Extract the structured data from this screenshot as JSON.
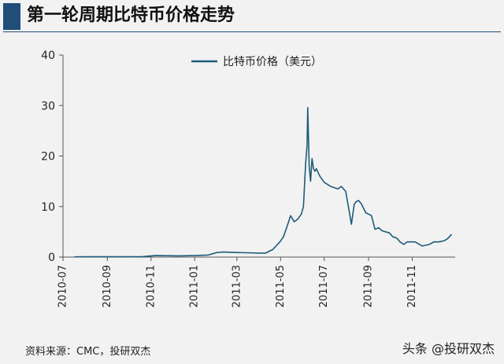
{
  "header": {
    "title": "第一轮周期比特币价格走势",
    "accent_color": "#1f4e79"
  },
  "chart_data": {
    "type": "line",
    "title": "第一轮周期比特币价格走势",
    "xlabel": "",
    "ylabel": "",
    "xlim": [
      "2010-07-01",
      "2011-12-31"
    ],
    "ylim": [
      0,
      40
    ],
    "yticks": [
      "0",
      "10",
      "20",
      "30",
      "40"
    ],
    "xticks": [
      "2010-07",
      "2010-09",
      "2010-11",
      "2011-01",
      "2011-03",
      "2011-05",
      "2011-07",
      "2011-09",
      "2011-11"
    ],
    "grid": false,
    "legend": {
      "position": "top-center"
    },
    "series": [
      {
        "name": "比特币价格（美元）",
        "color": "#1f5c7a",
        "x": [
          "2010-07-17",
          "2010-08-01",
          "2010-08-20",
          "2010-09-10",
          "2010-10-01",
          "2010-10-20",
          "2010-11-07",
          "2010-11-20",
          "2010-12-10",
          "2011-01-01",
          "2011-01-20",
          "2011-02-01",
          "2011-02-10",
          "2011-03-01",
          "2011-03-15",
          "2011-04-01",
          "2011-04-10",
          "2011-04-20",
          "2011-04-30",
          "2011-05-05",
          "2011-05-10",
          "2011-05-15",
          "2011-05-20",
          "2011-05-25",
          "2011-05-30",
          "2011-06-02",
          "2011-06-05",
          "2011-06-07",
          "2011-06-08",
          "2011-06-10",
          "2011-06-12",
          "2011-06-14",
          "2011-06-16",
          "2011-06-18",
          "2011-06-20",
          "2011-06-25",
          "2011-07-01",
          "2011-07-10",
          "2011-07-20",
          "2011-07-25",
          "2011-07-31",
          "2011-08-05",
          "2011-08-08",
          "2011-08-12",
          "2011-08-15",
          "2011-08-18",
          "2011-08-22",
          "2011-08-28",
          "2011-09-05",
          "2011-09-10",
          "2011-09-15",
          "2011-09-20",
          "2011-09-30",
          "2011-10-05",
          "2011-10-10",
          "2011-10-15",
          "2011-10-20",
          "2011-10-25",
          "2011-11-05",
          "2011-11-15",
          "2011-11-25",
          "2011-12-01",
          "2011-12-08",
          "2011-12-15",
          "2011-12-20",
          "2011-12-26"
        ],
        "values": [
          0.05,
          0.07,
          0.07,
          0.06,
          0.08,
          0.1,
          0.3,
          0.28,
          0.25,
          0.3,
          0.4,
          0.9,
          1.0,
          0.9,
          0.85,
          0.8,
          0.8,
          1.5,
          3.0,
          4.0,
          6.0,
          8.2,
          7.0,
          7.5,
          8.5,
          10.0,
          18.5,
          22.0,
          29.6,
          18.0,
          15.0,
          19.5,
          17.5,
          17.0,
          17.5,
          16.0,
          14.8,
          14.0,
          13.5,
          14.0,
          13.0,
          9.0,
          6.5,
          10.5,
          11.0,
          11.2,
          10.5,
          8.8,
          8.2,
          5.5,
          5.8,
          5.2,
          4.8,
          4.0,
          3.8,
          3.0,
          2.5,
          3.0,
          3.0,
          2.2,
          2.5,
          3.0,
          3.0,
          3.2,
          3.6,
          4.5
        ]
      }
    ]
  },
  "footer": {
    "source": "资料来源：CMC，投研双杰",
    "watermark": "头条 @投研双杰"
  }
}
